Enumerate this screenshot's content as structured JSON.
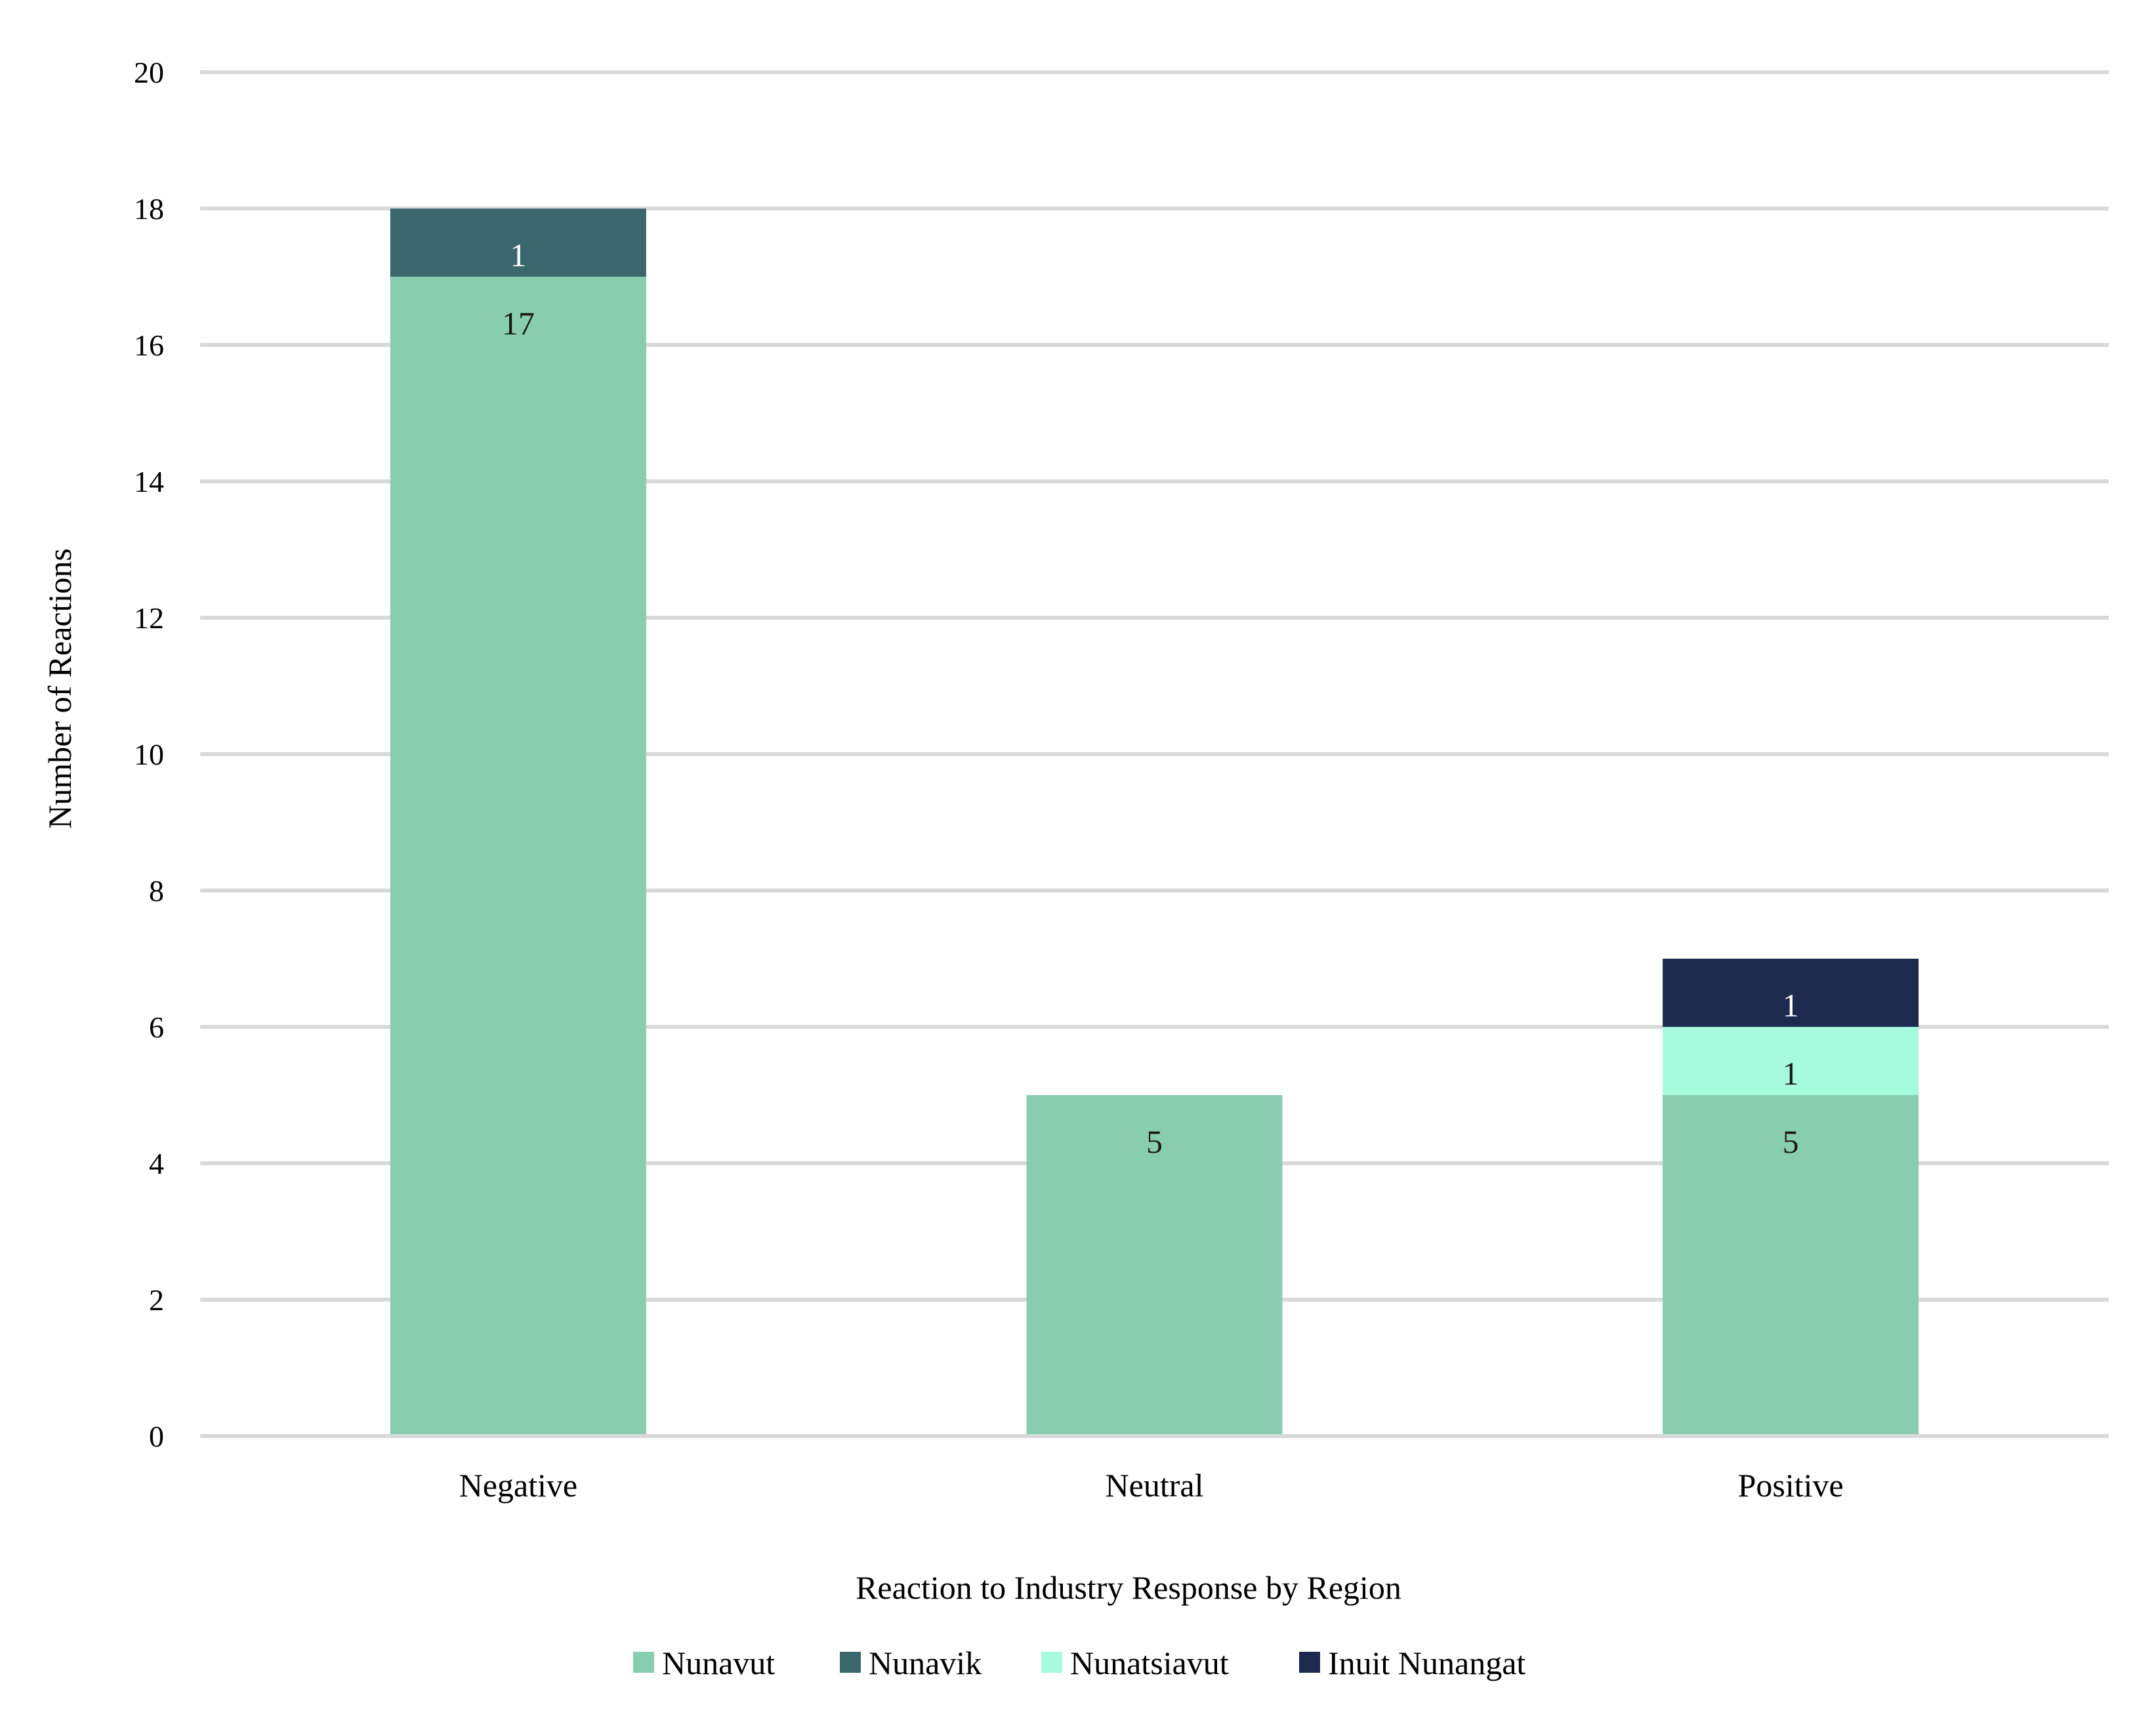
{
  "chart_data": {
    "type": "bar",
    "stacked": true,
    "title": "",
    "xlabel": "Reaction to Industry Response by Region",
    "ylabel": "Number of Reactions",
    "categories": [
      "Negative",
      "Neutral",
      "Positive"
    ],
    "ylim": [
      0,
      20
    ],
    "yticks": [
      0,
      2,
      4,
      6,
      8,
      10,
      12,
      14,
      16,
      18,
      20
    ],
    "grid": true,
    "legend_position": "bottom",
    "series": [
      {
        "name": "Nunavut",
        "color": "#88CDB0",
        "label_color": "#1a1a1a",
        "values": [
          17,
          5,
          5
        ]
      },
      {
        "name": "Nunavik",
        "color": "#3A676C",
        "label_color": "#ffffff",
        "values": [
          1,
          0,
          0
        ]
      },
      {
        "name": "Nunatsiavut",
        "color": "#A6FADE",
        "label_color": "#1a1a1a",
        "values": [
          0,
          0,
          1
        ]
      },
      {
        "name": "Inuit Nunangat",
        "color": "#1C2A4D",
        "label_color": "#ffffff",
        "values": [
          0,
          0,
          1
        ]
      }
    ]
  }
}
